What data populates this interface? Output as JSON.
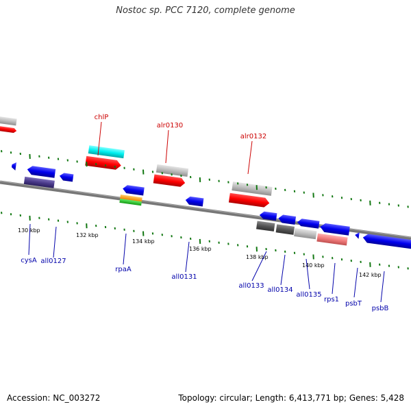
{
  "title": "Nostoc sp. PCC 7120, complete genome",
  "footer": {
    "accession": "Accession: NC_003272",
    "stats": "Topology: circular; Length: 6,413,771 bp; Genes: 5,428"
  },
  "colors": {
    "forward_label": "#cc0000",
    "reverse_label": "#0000aa",
    "backbone": "#777777",
    "tick": "#117711"
  },
  "scale_labels": [
    "130 kbp",
    "132 kbp",
    "134 kbp",
    "136 kbp",
    "138 kbp",
    "140 kbp",
    "142 kbp"
  ],
  "forward_gene_labels": [
    "chlP",
    "alr0130",
    "alr0132"
  ],
  "reverse_gene_labels": [
    "cysA",
    "all0127",
    "rpaA",
    "all0131",
    "all0133",
    "all0134",
    "all0135",
    "rps1",
    "psbT",
    "psbB"
  ]
}
